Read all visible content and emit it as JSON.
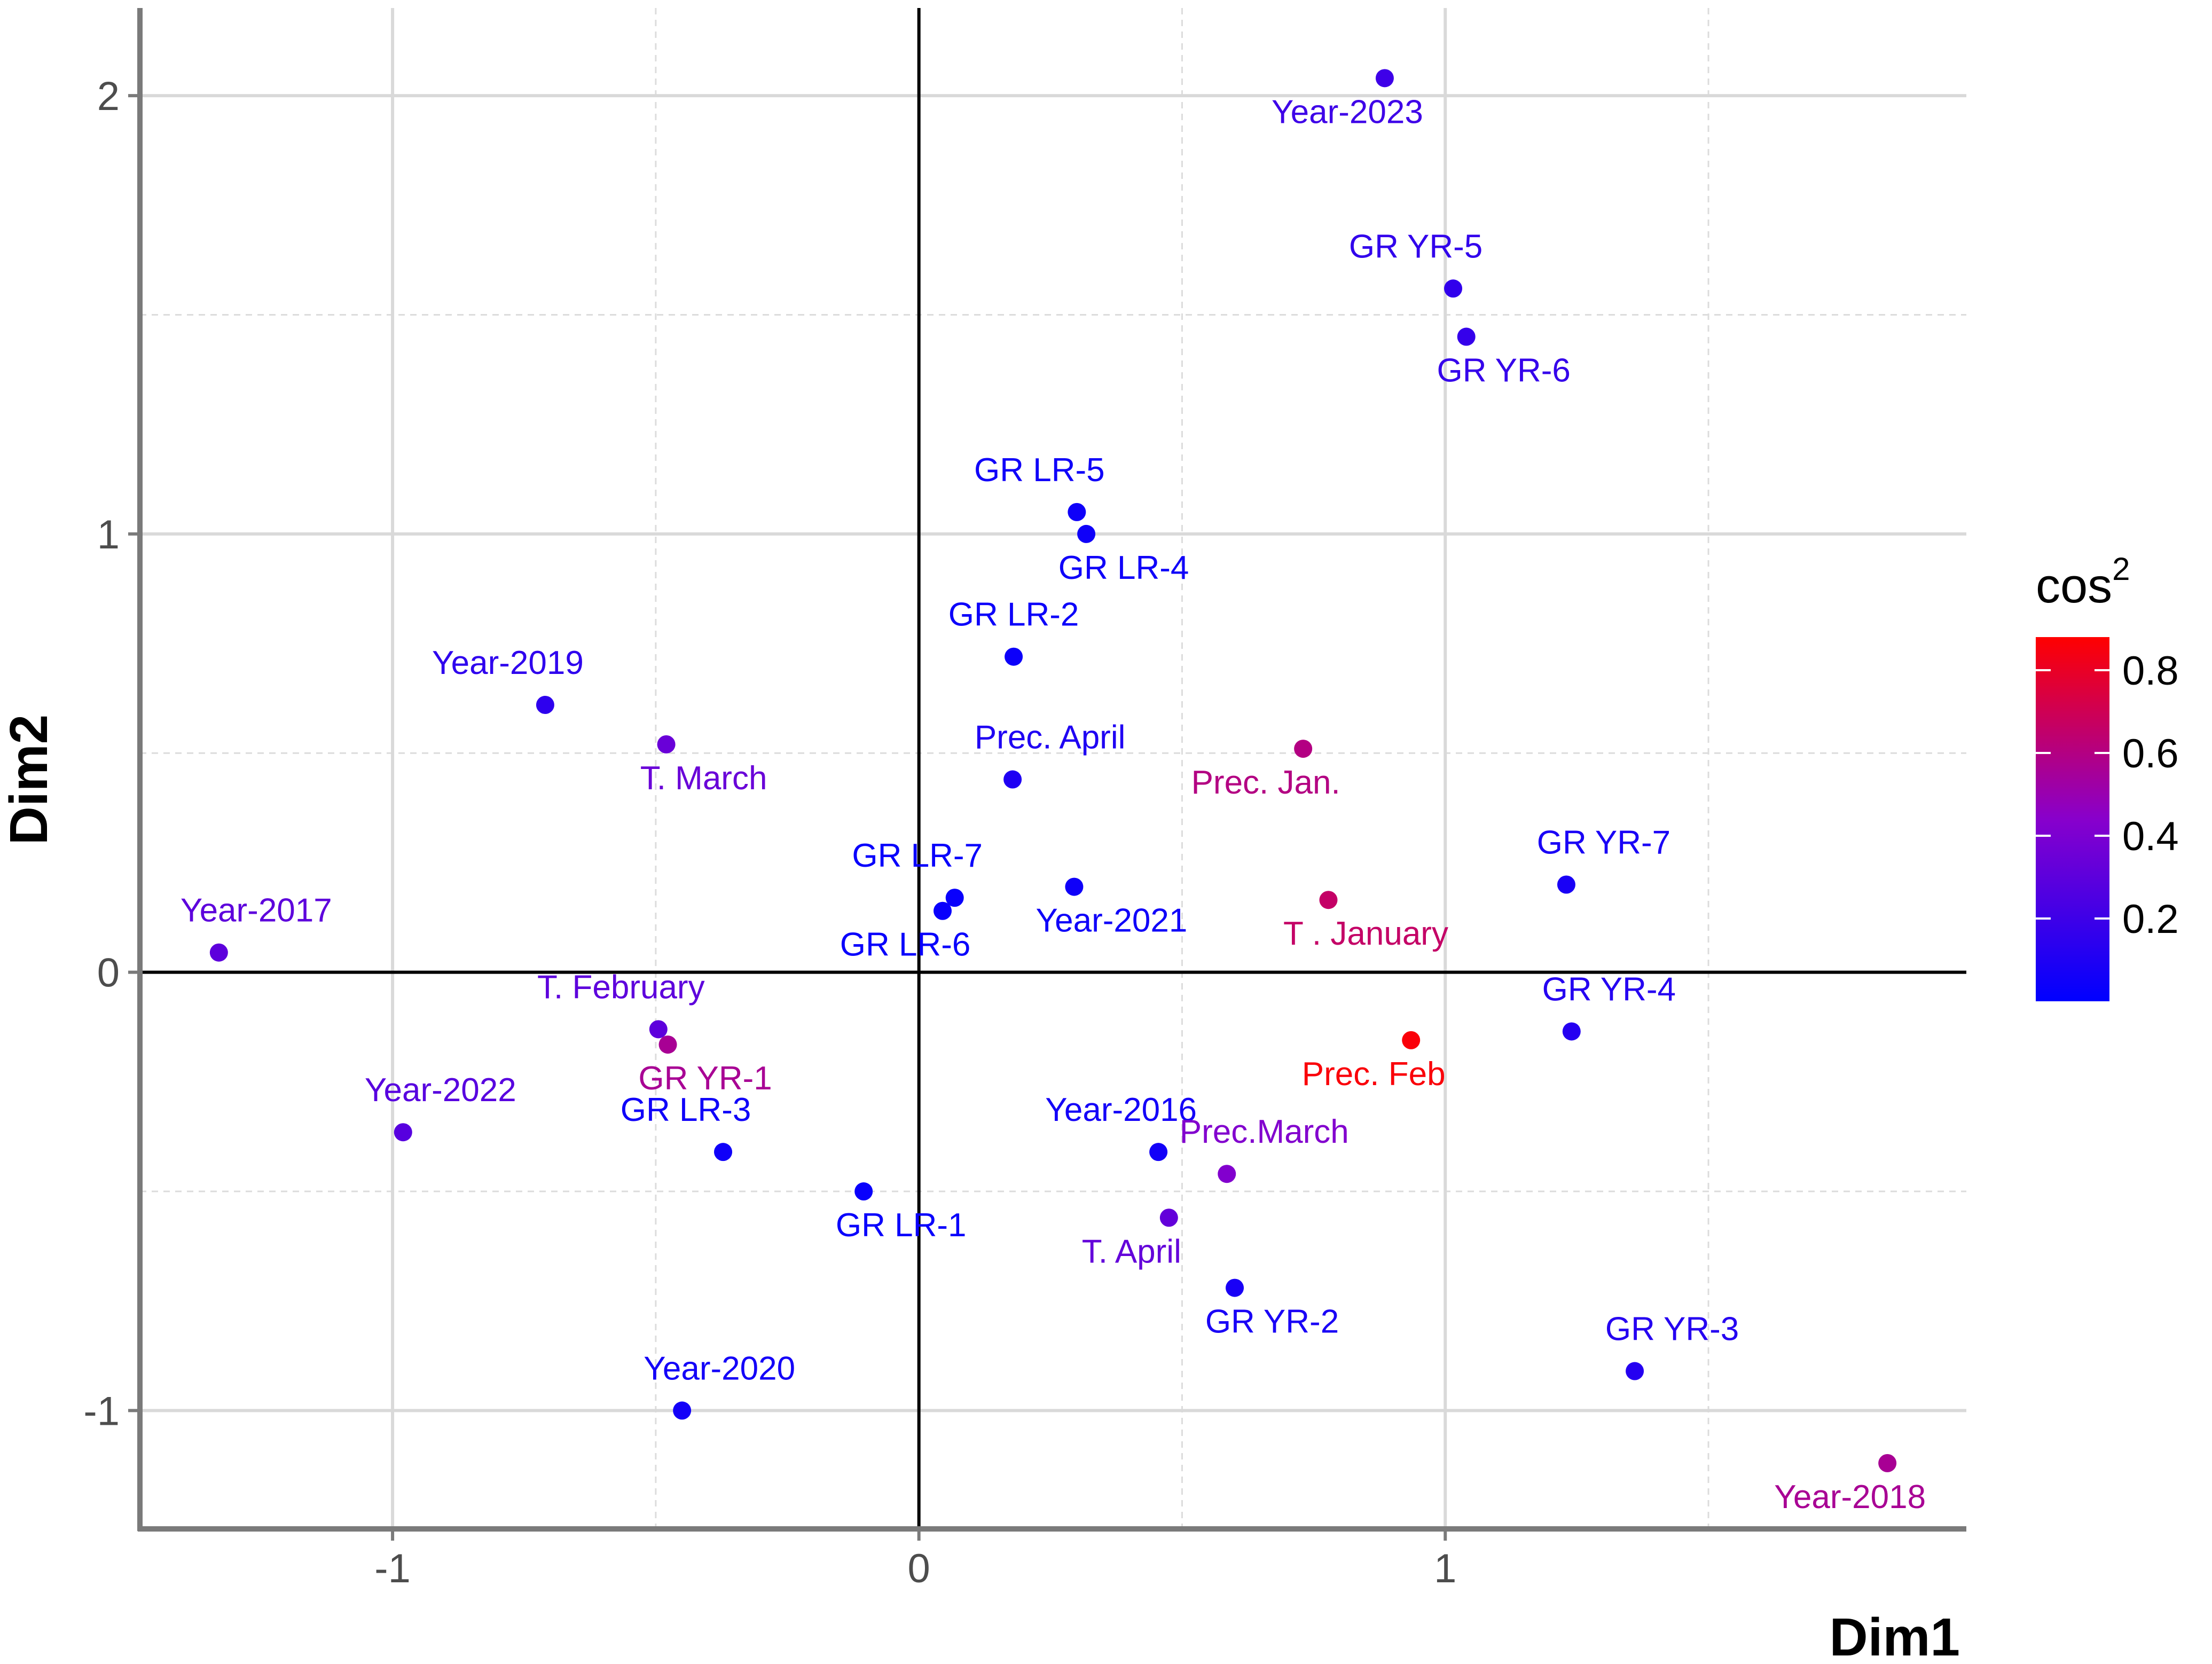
{
  "chart_data": {
    "type": "scatter",
    "title": "",
    "xlabel": "Dim1",
    "ylabel": "Dim2",
    "xlim": [
      -1.48,
      1.99
    ],
    "ylim": [
      -1.27,
      2.2
    ],
    "x_ticks": [
      -1,
      0,
      1
    ],
    "y_ticks": [
      -1,
      0,
      1,
      2
    ],
    "x_tick_labels": [
      "-1",
      "0",
      "1"
    ],
    "y_tick_labels": [
      "-1",
      "0",
      "1",
      "2"
    ],
    "grid": true,
    "color_scale": {
      "title": "cos",
      "title_sup": "2",
      "low_color": "#0000ff",
      "mid_color": "#8800cc",
      "high_color": "#ff0000",
      "min": 0.0,
      "max": 0.88,
      "ticks": [
        0.2,
        0.4,
        0.6,
        0.8
      ],
      "tick_labels": [
        "0.2",
        "0.4",
        "0.6",
        "0.8"
      ],
      "legend_position": "right"
    },
    "points": [
      {
        "label": "Year-2023",
        "x": 0.885,
        "y": 2.04,
        "cos2": 0.2,
        "label_pos": "below-left"
      },
      {
        "label": "GR YR-5",
        "x": 1.015,
        "y": 1.56,
        "cos2": 0.16,
        "label_pos": "above-left"
      },
      {
        "label": "GR YR-6",
        "x": 1.04,
        "y": 1.45,
        "cos2": 0.17,
        "label_pos": "below-right"
      },
      {
        "label": "GR LR-5",
        "x": 0.3,
        "y": 1.05,
        "cos2": 0.05,
        "label_pos": "above-left"
      },
      {
        "label": "GR LR-4",
        "x": 0.318,
        "y": 1.0,
        "cos2": 0.05,
        "label_pos": "below-right"
      },
      {
        "label": "GR LR-2",
        "x": 0.18,
        "y": 0.72,
        "cos2": 0.04,
        "label_pos": "above"
      },
      {
        "label": "Year-2019",
        "x": -0.71,
        "y": 0.61,
        "cos2": 0.15,
        "label_pos": "above-left"
      },
      {
        "label": "T. March",
        "x": -0.48,
        "y": 0.52,
        "cos2": 0.34,
        "label_pos": "below-right"
      },
      {
        "label": "Prec. April",
        "x": 0.178,
        "y": 0.44,
        "cos2": 0.1,
        "label_pos": "above-right"
      },
      {
        "label": "Prec. Jan.",
        "x": 0.73,
        "y": 0.51,
        "cos2": 0.6,
        "label_pos": "below-left"
      },
      {
        "label": "GR YR-7",
        "x": 1.23,
        "y": 0.2,
        "cos2": 0.08,
        "label_pos": "above-right"
      },
      {
        "label": "GR LR-7",
        "x": 0.068,
        "y": 0.17,
        "cos2": 0.03,
        "label_pos": "above-left"
      },
      {
        "label": "GR LR-6",
        "x": 0.045,
        "y": 0.14,
        "cos2": 0.03,
        "label_pos": "below-left"
      },
      {
        "label": "Year-2021",
        "x": 0.295,
        "y": 0.195,
        "cos2": 0.05,
        "label_pos": "below-right"
      },
      {
        "label": "T . January",
        "x": 0.778,
        "y": 0.165,
        "cos2": 0.66,
        "label_pos": "below-right"
      },
      {
        "label": "Year-2017",
        "x": -1.33,
        "y": 0.045,
        "cos2": 0.3,
        "label_pos": "above-right"
      },
      {
        "label": "T. February",
        "x": -0.495,
        "y": -0.13,
        "cos2": 0.3,
        "label_pos": "above-left"
      },
      {
        "label": "GR YR-1",
        "x": -0.477,
        "y": -0.165,
        "cos2": 0.56,
        "label_pos": "below-right"
      },
      {
        "label": "GR YR-4",
        "x": 1.24,
        "y": -0.135,
        "cos2": 0.12,
        "label_pos": "above-right"
      },
      {
        "label": "Prec. Feb",
        "x": 0.935,
        "y": -0.155,
        "cos2": 0.86,
        "label_pos": "below-left"
      },
      {
        "label": "Year-2022",
        "x": -0.98,
        "y": -0.365,
        "cos2": 0.28,
        "label_pos": "above-right"
      },
      {
        "label": "GR LR-3",
        "x": -0.372,
        "y": -0.41,
        "cos2": 0.05,
        "label_pos": "above-left"
      },
      {
        "label": "Year-2016",
        "x": 0.455,
        "y": -0.41,
        "cos2": 0.06,
        "label_pos": "above-left"
      },
      {
        "label": "Prec.March",
        "x": 0.585,
        "y": -0.46,
        "cos2": 0.42,
        "label_pos": "above-right"
      },
      {
        "label": "GR LR-1",
        "x": -0.105,
        "y": -0.5,
        "cos2": 0.03,
        "label_pos": "below-right"
      },
      {
        "label": "T. April",
        "x": 0.475,
        "y": -0.56,
        "cos2": 0.32,
        "label_pos": "below-left"
      },
      {
        "label": "GR YR-2",
        "x": 0.6,
        "y": -0.72,
        "cos2": 0.08,
        "label_pos": "below-right"
      },
      {
        "label": "GR YR-3",
        "x": 1.36,
        "y": -0.91,
        "cos2": 0.12,
        "label_pos": "above-right"
      },
      {
        "label": "Year-2020",
        "x": -0.45,
        "y": -1.0,
        "cos2": 0.06,
        "label_pos": "above-right"
      },
      {
        "label": "Year-2018",
        "x": 1.84,
        "y": -1.12,
        "cos2": 0.56,
        "label_pos": "below-left"
      }
    ]
  }
}
